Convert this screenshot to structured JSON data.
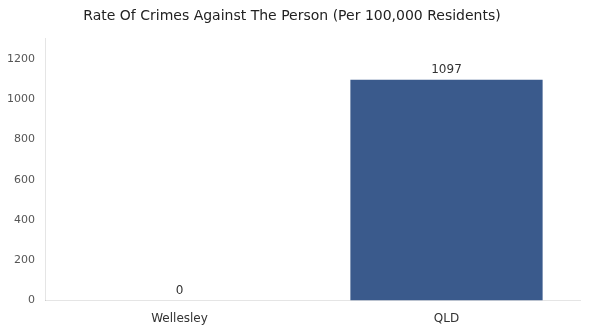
{
  "chart_data": {
    "type": "bar",
    "title": "Rate Of Crimes Against The Person (Per 100,000 Residents)",
    "categories": [
      "Wellesley",
      "QLD"
    ],
    "values": [
      0,
      1097
    ],
    "color": "#3a5a8c",
    "ylim": [
      0,
      1300
    ],
    "yticks": [
      0,
      200,
      400,
      600,
      800,
      1000,
      1200
    ],
    "grid": false,
    "legend": false,
    "data_labels": true
  }
}
